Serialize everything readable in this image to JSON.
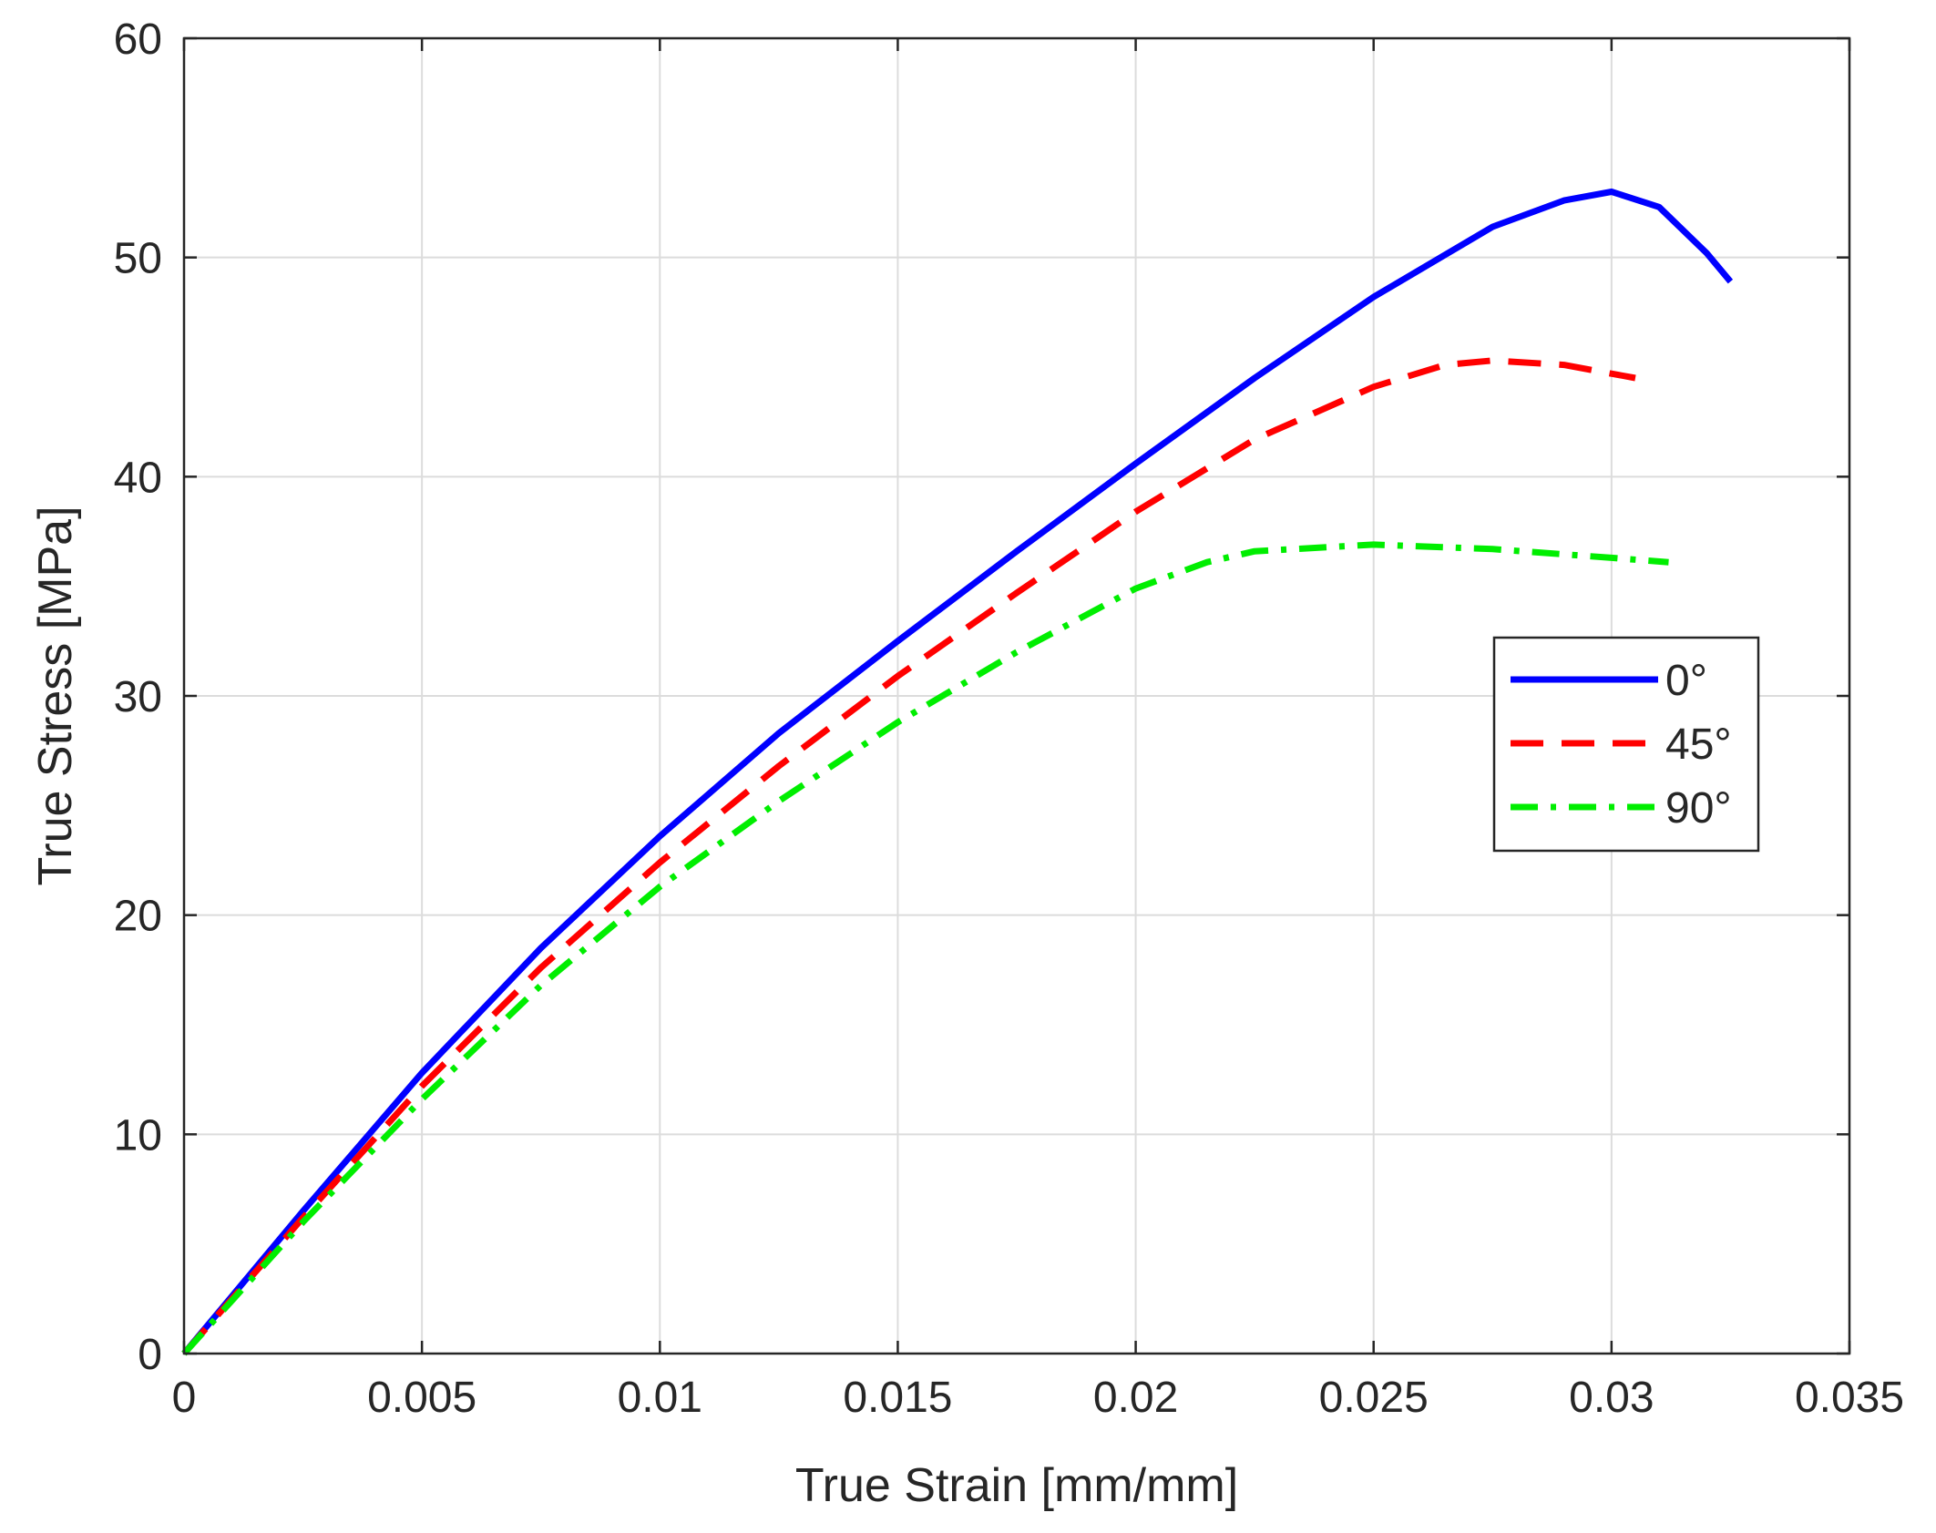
{
  "chart_data": {
    "type": "line",
    "title": "",
    "xlabel": "True Strain [mm/mm]",
    "ylabel": "True Stress [MPa]",
    "xlim": [
      0,
      0.035
    ],
    "ylim": [
      0,
      60
    ],
    "x_ticks": [
      0,
      0.005,
      0.01,
      0.015,
      0.02,
      0.025,
      0.03,
      0.035
    ],
    "x_tick_labels": [
      "0",
      "0.005",
      "0.01",
      "0.015",
      "0.02",
      "0.025",
      "0.03",
      "0.035"
    ],
    "y_ticks": [
      0,
      10,
      20,
      30,
      40,
      50,
      60
    ],
    "y_tick_labels": [
      "0",
      "10",
      "20",
      "30",
      "40",
      "50",
      "60"
    ],
    "grid": true,
    "legend_position": "right",
    "series": [
      {
        "name": "0°",
        "color": "#0000ff",
        "line_style": "solid",
        "x": [
          0,
          0.0025,
          0.005,
          0.0075,
          0.01,
          0.0125,
          0.015,
          0.0175,
          0.02,
          0.0225,
          0.025,
          0.0275,
          0.029,
          0.03,
          0.031,
          0.032,
          0.0325
        ],
        "y": [
          0,
          6.5,
          12.8,
          18.5,
          23.6,
          28.3,
          32.5,
          36.6,
          40.6,
          44.5,
          48.2,
          51.4,
          52.6,
          53.0,
          52.3,
          50.2,
          48.9
        ]
      },
      {
        "name": "45°",
        "color": "#ff0000",
        "line_style": "dashed",
        "x": [
          0,
          0.0025,
          0.005,
          0.0075,
          0.01,
          0.0125,
          0.015,
          0.0175,
          0.02,
          0.0225,
          0.025,
          0.0265,
          0.0275,
          0.029,
          0.0305
        ],
        "y": [
          0,
          6.2,
          12.2,
          17.6,
          22.4,
          26.8,
          30.9,
          34.7,
          38.4,
          41.7,
          44.1,
          45.1,
          45.3,
          45.1,
          44.5
        ]
      },
      {
        "name": "90°",
        "color": "#00ee00",
        "line_style": "dashdot",
        "x": [
          0,
          0.0025,
          0.005,
          0.0075,
          0.01,
          0.0125,
          0.015,
          0.0175,
          0.02,
          0.0215,
          0.0225,
          0.025,
          0.0275,
          0.03,
          0.0312
        ],
        "y": [
          0,
          6.0,
          11.6,
          16.8,
          21.3,
          25.2,
          28.8,
          32.0,
          34.9,
          36.1,
          36.6,
          36.9,
          36.7,
          36.3,
          36.1
        ]
      }
    ]
  }
}
